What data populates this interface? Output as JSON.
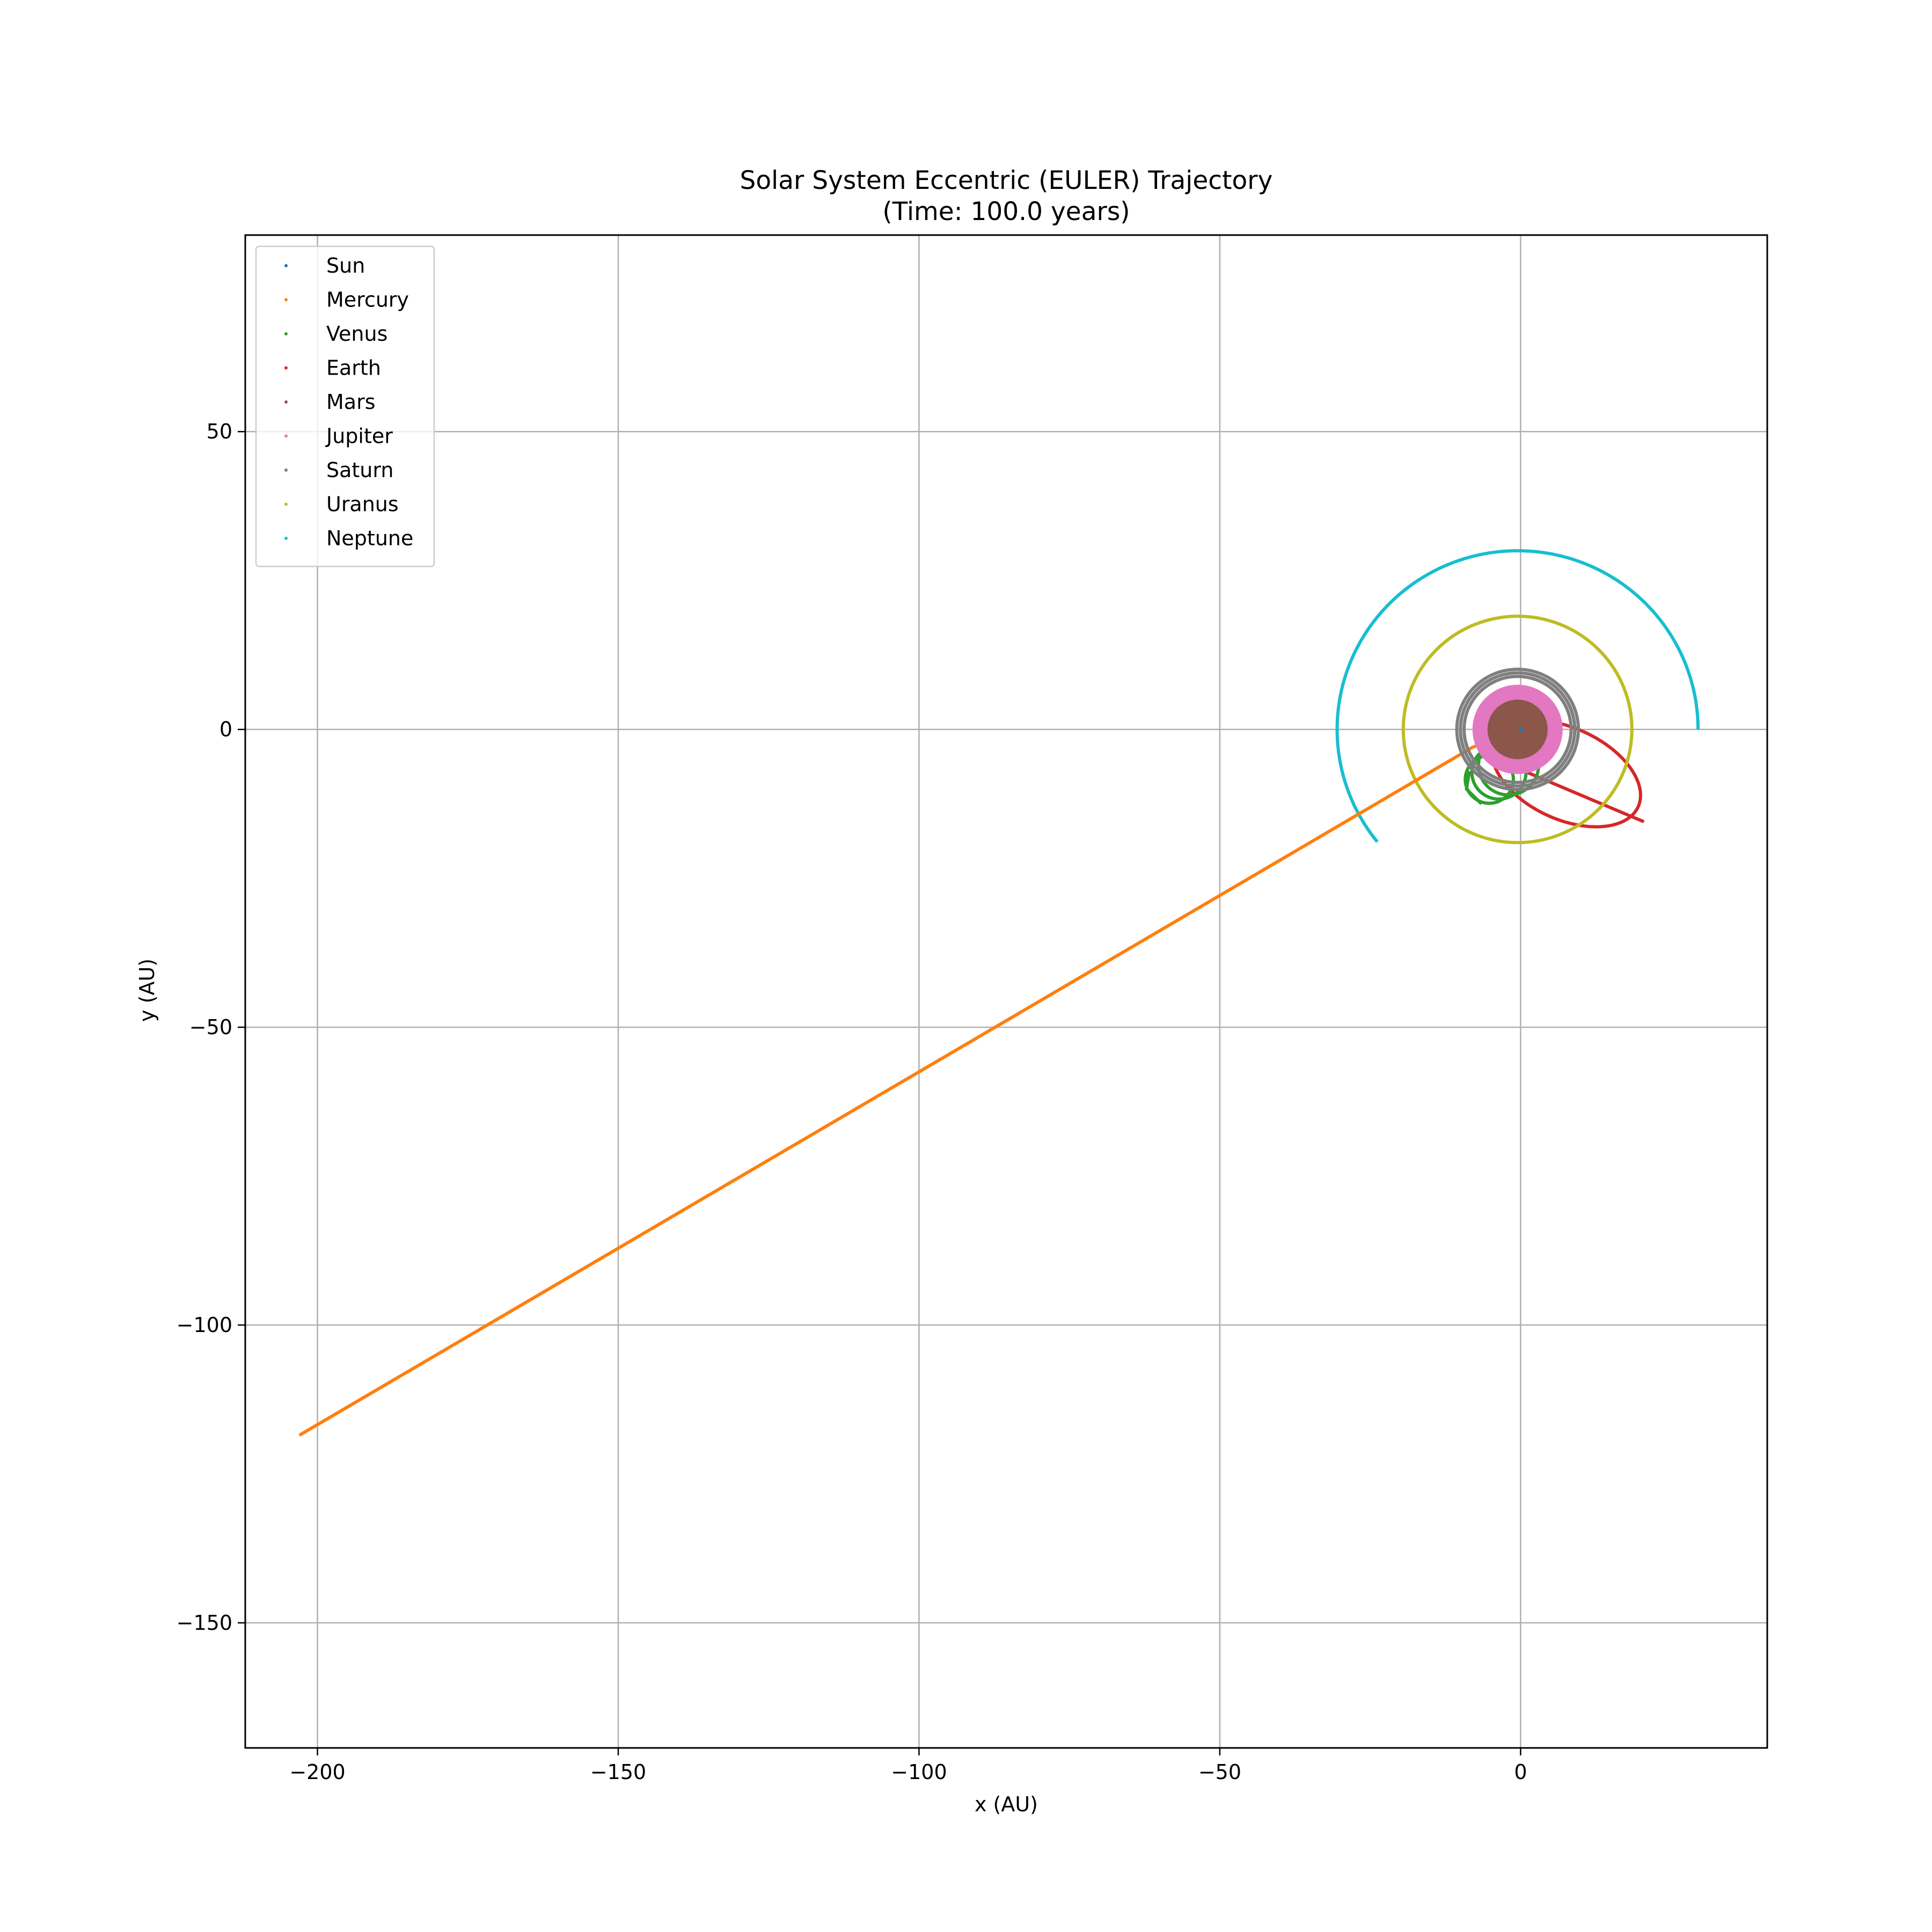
{
  "chart_data": {
    "type": "line",
    "title": "Solar System Eccentric (EULER) Trajectory",
    "subtitle": "(Time: 100.0 years)",
    "xlabel": "x (AU)",
    "ylabel": "y (AU)",
    "xlim": [
      -212,
      41
    ],
    "ylim": [
      -171,
      83
    ],
    "xticks": [
      -200,
      -150,
      -100,
      -50,
      0
    ],
    "yticks": [
      50,
      0,
      -50,
      -100,
      -150
    ],
    "xtick_labels": [
      "−200",
      "−150",
      "−100",
      "−50",
      "0"
    ],
    "ytick_labels": [
      "50",
      "0",
      "−50",
      "−100",
      "−150"
    ],
    "grid": true,
    "legend_position": "top-left",
    "series": [
      {
        "name": "Sun",
        "color": "#1f77b4",
        "kind": "point",
        "points": [
          [
            0,
            0
          ]
        ]
      },
      {
        "name": "Mercury",
        "color": "#ff7f0e",
        "kind": "escape",
        "from": [
          -8,
          -3
        ],
        "to": [
          -203,
          -118.5
        ]
      },
      {
        "name": "Venus",
        "color": "#2ca02c",
        "kind": "loops",
        "center": [
          -2,
          -6
        ],
        "radius": 5,
        "end": [
          -6.5,
          -12.5
        ]
      },
      {
        "name": "Earth",
        "color": "#d62728",
        "kind": "ellipse",
        "center": [
          7.5,
          -7.5
        ],
        "radii": [
          13,
          7.5
        ],
        "tilt": -25,
        "end": [
          20.5,
          -15.5
        ]
      },
      {
        "name": "Mars",
        "color": "#8c564b",
        "kind": "disk",
        "center": [
          -0.5,
          0
        ],
        "radius": 5
      },
      {
        "name": "Jupiter",
        "color": "#e377c2",
        "kind": "disk",
        "center": [
          -0.5,
          0
        ],
        "radius": 7.5
      },
      {
        "name": "Saturn",
        "color": "#7f7f7f",
        "kind": "ring",
        "center": [
          -0.5,
          0
        ],
        "radius": 9.5
      },
      {
        "name": "Uranus",
        "color": "#bcbd22",
        "kind": "circle",
        "center": [
          -0.5,
          0
        ],
        "radius": 19
      },
      {
        "name": "Neptune",
        "color": "#17becf",
        "kind": "arc",
        "center": [
          -0.5,
          0
        ],
        "radius": 30,
        "from_deg": 0,
        "to_deg": 219
      }
    ]
  }
}
